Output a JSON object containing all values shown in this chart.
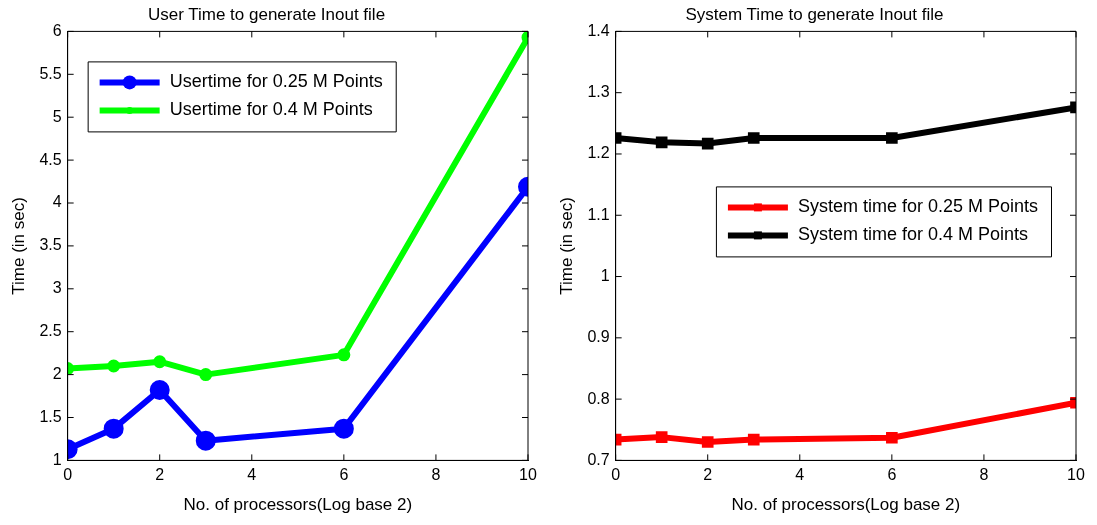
{
  "chart_data": [
    {
      "type": "line",
      "title": "User Time to generate Inout file",
      "xlabel": "No. of processors(Log base 2)",
      "ylabel": "Time (in sec)",
      "x": [
        0,
        1,
        2,
        3,
        6,
        10
      ],
      "xlim": [
        0,
        10
      ],
      "xticks": [
        0,
        2,
        4,
        6,
        8,
        10
      ],
      "ylim": [
        1,
        6
      ],
      "yticks": [
        1,
        1.5,
        2,
        2.5,
        3,
        3.5,
        4,
        4.5,
        5,
        5.5,
        6
      ],
      "grid": false,
      "legend": "top left",
      "series": [
        {
          "name": "Usertime for 0.25 M Points",
          "color": "#0000ff",
          "marker": "circle",
          "values": [
            1.13,
            1.37,
            1.82,
            1.23,
            1.37,
            4.19
          ]
        },
        {
          "name": "Usertime for 0.4 M Points",
          "color": "#00ff00",
          "marker": "circle",
          "values": [
            2.07,
            2.1,
            2.15,
            2.0,
            2.23,
            5.93
          ]
        }
      ]
    },
    {
      "type": "line",
      "title": "System Time to generate Inout file",
      "xlabel": "No. of processors(Log base 2)",
      "ylabel": "Time (in sec)",
      "x": [
        0,
        1,
        2,
        3,
        6,
        10
      ],
      "xlim": [
        0,
        10
      ],
      "xticks": [
        0,
        2,
        4,
        6,
        8,
        10
      ],
      "ylim": [
        0.7,
        1.4
      ],
      "yticks": [
        0.7,
        0.8,
        0.9,
        1,
        1.1,
        1.2,
        1.3,
        1.4
      ],
      "grid": false,
      "legend": "right",
      "series": [
        {
          "name": "System time for 0.25 M Points",
          "color": "#ff0000",
          "marker": "square",
          "values": [
            0.734,
            0.738,
            0.73,
            0.734,
            0.737,
            0.794
          ]
        },
        {
          "name": "System time for 0.4 M Points",
          "color": "#000000",
          "marker": "square",
          "values": [
            1.226,
            1.219,
            1.217,
            1.226,
            1.226,
            1.276
          ]
        }
      ]
    }
  ]
}
